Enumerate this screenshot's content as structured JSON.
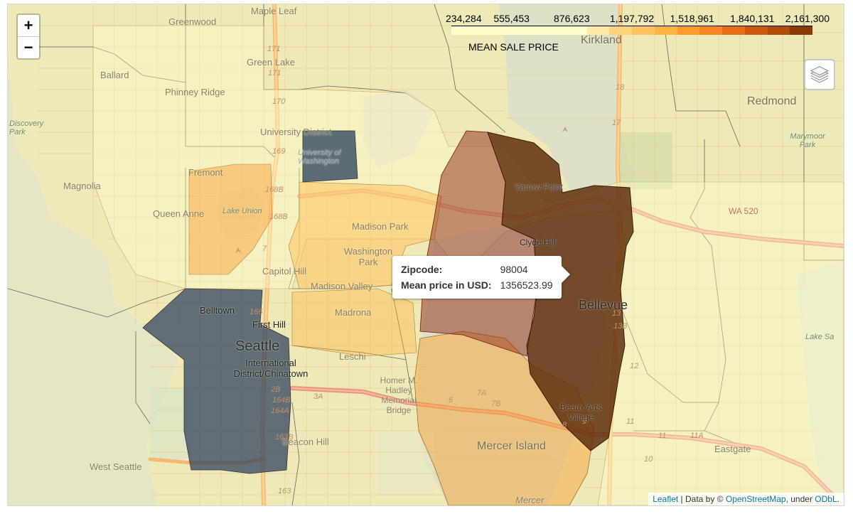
{
  "legend": {
    "title": "MEAN SALE PRICE",
    "ticks": [
      "234,284",
      "555,453",
      "876,623",
      "1,197,792",
      "1,518,961",
      "1,840,131",
      "2,161,300"
    ],
    "colors": [
      "#ffffcc",
      "#ffffcc",
      "#ffffcc",
      "#ffffcc",
      "#ffffcc",
      "#ffffcc",
      "#ffe9a5",
      "#ffd27e",
      "#fec35f",
      "#feb43f",
      "#fd9b2c",
      "#f68722",
      "#e86d16",
      "#cc5a0e",
      "#b14c09",
      "#8c3a05"
    ]
  },
  "controls": {
    "zoom_in": "+",
    "zoom_out": "−",
    "layers_icon": "layers-icon"
  },
  "tooltip": {
    "zip_label": "Zipcode:",
    "zip_value": "98004",
    "price_label": "Mean price in USD:",
    "price_value": "1356523.99"
  },
  "attribution": {
    "leaflet": "Leaflet",
    "sep1": " | Data by © ",
    "osm": "OpenStreetMap",
    "sep2": ", under ",
    "odbl": "ODbL",
    "end": "."
  },
  "places": {
    "maple_leaf": "Maple Leaf",
    "greenwood": "Greenwood",
    "green_lake": "Green Lake",
    "ballard": "Ballard",
    "phinney_ridge": "Phinney Ridge",
    "discovery_park": "Discovery Park",
    "university_district": "University District",
    "university_of_washington": "University of Washington",
    "fremont": "Fremont",
    "magnolia": "Magnolia",
    "queen_anne": "Queen Anne",
    "lake_union": "Lake Union",
    "madison_park": "Madison Park",
    "washington_park": "Washington Park",
    "capitol_hill": "Capitol Hill",
    "madison_valley": "Madison Valley",
    "belltown": "Belltown",
    "first_hill": "First Hill",
    "seattle": "Seattle",
    "international_district": "International District/Chinatown",
    "madrona": "Madrona",
    "leschi": "Leschi",
    "homer_bridge": "Homer M. Hadley Memorial Bridge",
    "west_seattle": "West Seattle",
    "beacon_hill": "Beacon Hill",
    "mercer_island": "Mercer Island",
    "mercer": "Mercer",
    "kirkland": "Kirkland",
    "redmond": "Redmond",
    "marymoor_park": "Marymoor Park",
    "yarrow_point": "Yarrow Point",
    "clyde_hill": "Clyde Hill",
    "bellevue": "Bellevue",
    "beaux_arts": "Beaux Arts Village",
    "eastgate": "Eastgate",
    "lake_sammamish": "Lake Sa",
    "wa520": "WA 520"
  }
}
